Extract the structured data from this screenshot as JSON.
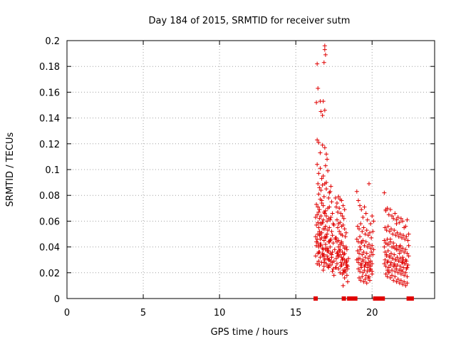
{
  "chart_data": {
    "type": "scatter",
    "title": "Day 184 of 2015, SRMTID for receiver sutm",
    "xlabel": "GPS time / hours",
    "ylabel": "SRMTID / TECUs",
    "xlim": [
      0,
      24.1
    ],
    "ylim": [
      0,
      0.2
    ],
    "xticks": [
      0,
      5,
      10,
      15,
      20
    ],
    "xtick_labels": [
      "0",
      "5",
      "10",
      "15",
      "20"
    ],
    "yticks": [
      0,
      0.02,
      0.04,
      0.06,
      0.08,
      0.1,
      0.12,
      0.14,
      0.16,
      0.18,
      0.2
    ],
    "ytick_labels": [
      "0",
      "0.02",
      "0.04",
      "0.06",
      "0.08",
      "0.1",
      "0.12",
      "0.14",
      "0.16",
      "0.18",
      "0.2"
    ],
    "grid": true,
    "marker": "plus",
    "color": "#e00000",
    "series": [
      {
        "name": "SRMTID",
        "x": [
          16.9,
          16.9,
          16.95,
          16.85,
          16.4,
          16.45,
          16.35,
          16.6,
          16.9,
          16.65,
          16.75,
          16.8,
          16.4,
          16.5,
          16.6,
          16.75,
          16.9,
          17.0,
          17.05,
          16.95,
          16.8,
          16.4,
          16.5,
          16.6,
          16.7,
          17.1,
          17.3,
          17.2,
          16.9,
          17.0,
          16.45,
          16.55,
          16.65,
          16.75,
          16.85,
          17.15,
          17.25,
          16.5,
          16.7,
          17.0,
          16.35,
          16.45,
          16.55,
          16.7,
          16.8,
          16.95,
          17.1,
          17.35,
          17.4,
          16.6,
          16.85,
          17.2,
          16.3,
          16.4,
          16.55,
          16.65,
          16.8,
          16.9,
          17.05,
          17.15,
          17.3,
          17.45,
          16.5,
          16.75,
          17.0,
          17.25,
          16.35,
          16.5,
          16.6,
          16.8,
          16.95,
          17.1,
          17.2,
          17.35,
          17.5,
          16.45,
          16.7,
          16.9,
          17.05,
          17.4,
          16.3,
          16.4,
          16.55,
          16.7,
          16.85,
          17.0,
          17.15,
          17.3,
          17.45,
          17.6,
          16.6,
          16.95,
          17.25,
          16.35,
          16.5,
          16.65,
          16.8,
          16.95,
          17.1,
          17.25,
          17.4,
          17.55,
          16.45,
          16.75,
          17.05,
          17.35,
          16.3,
          16.45,
          16.6,
          16.75,
          16.9,
          17.05,
          17.2,
          17.35,
          17.5,
          17.65,
          16.55,
          16.85,
          17.15,
          16.4,
          16.55,
          16.7,
          16.85,
          17.0,
          17.15,
          17.3,
          17.45,
          16.5,
          16.8,
          17.1,
          17.4,
          16.35,
          16.5,
          16.65,
          16.8,
          16.95,
          17.1,
          17.25,
          17.4,
          16.6,
          16.9,
          17.2,
          16.45,
          16.6,
          16.75,
          16.9,
          17.05,
          17.2,
          17.35,
          16.55,
          16.85,
          17.3,
          16.7,
          16.95,
          17.15,
          17.5,
          17.6,
          17.6,
          17.7,
          17.8,
          17.9,
          18.0,
          18.1,
          18.2,
          17.65,
          17.75,
          17.85,
          17.95,
          18.05,
          18.15,
          17.7,
          17.8,
          17.9,
          18.0,
          18.1,
          18.2,
          18.3,
          17.75,
          17.85,
          17.95,
          18.05,
          18.25,
          17.6,
          17.7,
          17.8,
          17.9,
          18.0,
          18.1,
          18.2,
          18.3,
          18.35,
          17.65,
          17.85,
          18.05,
          17.7,
          17.8,
          17.9,
          18.0,
          18.1,
          18.2,
          18.3,
          17.75,
          17.95,
          18.15,
          18.35,
          18.4,
          17.65,
          17.8,
          17.95,
          18.1,
          18.25,
          18.4,
          17.7,
          17.9,
          18.05,
          18.2,
          18.35,
          17.75,
          17.9,
          18.05,
          18.2,
          18.3,
          18.45,
          17.8,
          18.0,
          18.15,
          18.35,
          18.1,
          18.2,
          18.3,
          18.4,
          18.15,
          18.0,
          19.0,
          19.1,
          19.2,
          19.3,
          19.4,
          19.5,
          19.6,
          19.7,
          19.8,
          19.9,
          20.0,
          20.1,
          19.05,
          19.15,
          19.25,
          19.35,
          19.45,
          19.55,
          19.65,
          19.75,
          19.85,
          19.95,
          20.05,
          19.0,
          19.1,
          19.2,
          19.3,
          19.4,
          19.5,
          19.6,
          19.7,
          19.8,
          19.9,
          20.0,
          20.1,
          19.05,
          19.15,
          19.25,
          19.35,
          19.45,
          19.55,
          19.65,
          19.75,
          19.85,
          19.95,
          20.05,
          19.0,
          19.1,
          19.2,
          19.3,
          19.4,
          19.5,
          19.6,
          19.7,
          19.8,
          19.9,
          20.0,
          19.1,
          19.2,
          19.3,
          19.4,
          19.5,
          19.6,
          19.7,
          19.8,
          19.9,
          20.0,
          19.15,
          19.25,
          19.35,
          19.45,
          19.55,
          19.65,
          19.75,
          19.85,
          19.1,
          19.25,
          19.4,
          19.55,
          19.7,
          19.85,
          20.0,
          19.9,
          19.8,
          19.2,
          19.3,
          20.8,
          20.9,
          21.0,
          21.1,
          21.2,
          21.3,
          21.4,
          21.5,
          21.6,
          21.7,
          21.8,
          21.9,
          22.0,
          22.1,
          22.2,
          22.3,
          22.4,
          20.85,
          20.95,
          21.05,
          21.15,
          21.25,
          21.35,
          21.45,
          21.55,
          21.65,
          21.75,
          21.85,
          21.95,
          22.05,
          22.15,
          22.25,
          22.35,
          20.8,
          20.9,
          21.0,
          21.1,
          21.2,
          21.3,
          21.4,
          21.5,
          21.6,
          21.7,
          21.8,
          21.9,
          22.0,
          22.1,
          22.2,
          22.3,
          22.4,
          20.85,
          20.95,
          21.05,
          21.15,
          21.25,
          21.35,
          21.45,
          21.55,
          21.65,
          21.75,
          21.85,
          21.95,
          22.05,
          22.15,
          22.25,
          22.35,
          20.8,
          20.9,
          21.0,
          21.1,
          21.2,
          21.3,
          21.4,
          21.5,
          21.6,
          21.7,
          21.8,
          21.9,
          22.0,
          22.1,
          22.2,
          22.3,
          20.9,
          21.0,
          21.1,
          21.2,
          21.3,
          21.4,
          21.5,
          21.6,
          21.7,
          21.8,
          21.9,
          22.0,
          22.1,
          22.2,
          22.3,
          20.85,
          20.95,
          21.05,
          21.15,
          21.25,
          21.35,
          21.45,
          21.55,
          21.65,
          21.75,
          21.85,
          21.95,
          22.05,
          22.15,
          22.25,
          21.0,
          21.2,
          21.4,
          21.6,
          21.8,
          22.0,
          22.2,
          22.4,
          21.1,
          21.5,
          21.9,
          22.3,
          20.8,
          21.6,
          22.0,
          21.85,
          20.85,
          21.0,
          20.9
        ],
        "y": [
          0.196,
          0.193,
          0.189,
          0.183,
          0.182,
          0.163,
          0.152,
          0.153,
          0.146,
          0.145,
          0.142,
          0.153,
          0.123,
          0.121,
          0.113,
          0.119,
          0.117,
          0.112,
          0.108,
          0.103,
          0.095,
          0.104,
          0.097,
          0.101,
          0.093,
          0.099,
          0.087,
          0.082,
          0.089,
          0.09,
          0.089,
          0.086,
          0.084,
          0.088,
          0.079,
          0.078,
          0.083,
          0.081,
          0.076,
          0.085,
          0.073,
          0.071,
          0.069,
          0.074,
          0.072,
          0.068,
          0.07,
          0.075,
          0.066,
          0.077,
          0.067,
          0.071,
          0.063,
          0.065,
          0.062,
          0.064,
          0.061,
          0.066,
          0.06,
          0.062,
          0.063,
          0.058,
          0.067,
          0.059,
          0.064,
          0.061,
          0.057,
          0.055,
          0.058,
          0.054,
          0.056,
          0.053,
          0.055,
          0.052,
          0.057,
          0.059,
          0.051,
          0.054,
          0.05,
          0.049,
          0.048,
          0.046,
          0.049,
          0.047,
          0.045,
          0.048,
          0.044,
          0.046,
          0.043,
          0.047,
          0.05,
          0.042,
          0.045,
          0.041,
          0.04,
          0.042,
          0.038,
          0.039,
          0.037,
          0.04,
          0.036,
          0.038,
          0.043,
          0.035,
          0.039,
          0.034,
          0.033,
          0.035,
          0.032,
          0.034,
          0.031,
          0.033,
          0.03,
          0.032,
          0.029,
          0.031,
          0.036,
          0.028,
          0.03,
          0.027,
          0.026,
          0.028,
          0.025,
          0.027,
          0.024,
          0.026,
          0.023,
          0.029,
          0.022,
          0.025,
          0.021,
          0.044,
          0.036,
          0.041,
          0.033,
          0.038,
          0.031,
          0.035,
          0.028,
          0.042,
          0.03,
          0.026,
          0.05,
          0.046,
          0.039,
          0.048,
          0.037,
          0.044,
          0.032,
          0.052,
          0.034,
          0.029,
          0.058,
          0.047,
          0.037,
          0.018,
          0.024,
          0.078,
          0.074,
          0.079,
          0.077,
          0.076,
          0.072,
          0.069,
          0.071,
          0.067,
          0.07,
          0.066,
          0.064,
          0.062,
          0.061,
          0.058,
          0.059,
          0.056,
          0.057,
          0.054,
          0.051,
          0.055,
          0.052,
          0.05,
          0.049,
          0.048,
          0.046,
          0.044,
          0.045,
          0.042,
          0.043,
          0.041,
          0.039,
          0.04,
          0.038,
          0.047,
          0.037,
          0.036,
          0.035,
          0.033,
          0.034,
          0.032,
          0.031,
          0.03,
          0.029,
          0.036,
          0.028,
          0.027,
          0.026,
          0.025,
          0.024,
          0.023,
          0.025,
          0.022,
          0.021,
          0.023,
          0.027,
          0.02,
          0.019,
          0.022,
          0.018,
          0.033,
          0.038,
          0.03,
          0.035,
          0.028,
          0.031,
          0.04,
          0.026,
          0.034,
          0.029,
          0.01,
          0.016,
          0.024,
          0.013,
          0.02,
          0.044,
          0.083,
          0.076,
          0.072,
          0.069,
          0.063,
          0.071,
          0.066,
          0.061,
          0.089,
          0.058,
          0.064,
          0.06,
          0.056,
          0.054,
          0.058,
          0.052,
          0.055,
          0.05,
          0.053,
          0.049,
          0.051,
          0.047,
          0.052,
          0.046,
          0.044,
          0.048,
          0.043,
          0.045,
          0.041,
          0.044,
          0.04,
          0.042,
          0.039,
          0.041,
          0.038,
          0.037,
          0.035,
          0.038,
          0.034,
          0.036,
          0.032,
          0.035,
          0.031,
          0.033,
          0.036,
          0.034,
          0.03,
          0.028,
          0.031,
          0.027,
          0.029,
          0.025,
          0.028,
          0.024,
          0.026,
          0.029,
          0.027,
          0.023,
          0.021,
          0.024,
          0.02,
          0.022,
          0.018,
          0.021,
          0.017,
          0.023,
          0.019,
          0.016,
          0.014,
          0.017,
          0.013,
          0.015,
          0.012,
          0.016,
          0.014,
          0.031,
          0.026,
          0.03,
          0.026,
          0.027,
          0.022,
          0.021,
          0.025,
          0.028,
          0.04,
          0.044,
          0.082,
          0.068,
          0.07,
          0.065,
          0.069,
          0.064,
          0.062,
          0.066,
          0.061,
          0.063,
          0.059,
          0.062,
          0.06,
          0.055,
          0.056,
          0.061,
          0.05,
          0.055,
          0.053,
          0.056,
          0.052,
          0.054,
          0.05,
          0.053,
          0.049,
          0.051,
          0.048,
          0.05,
          0.047,
          0.049,
          0.046,
          0.048,
          0.045,
          0.045,
          0.043,
          0.046,
          0.042,
          0.044,
          0.04,
          0.043,
          0.039,
          0.041,
          0.038,
          0.04,
          0.037,
          0.039,
          0.036,
          0.038,
          0.035,
          0.041,
          0.036,
          0.034,
          0.037,
          0.033,
          0.035,
          0.031,
          0.034,
          0.03,
          0.032,
          0.029,
          0.031,
          0.028,
          0.03,
          0.027,
          0.029,
          0.026,
          0.027,
          0.025,
          0.028,
          0.024,
          0.026,
          0.022,
          0.025,
          0.021,
          0.023,
          0.02,
          0.022,
          0.019,
          0.021,
          0.018,
          0.02,
          0.017,
          0.019,
          0.017,
          0.02,
          0.016,
          0.018,
          0.014,
          0.017,
          0.013,
          0.015,
          0.012,
          0.014,
          0.011,
          0.013,
          0.01,
          0.012,
          0.03,
          0.033,
          0.029,
          0.032,
          0.028,
          0.031,
          0.027,
          0.03,
          0.026,
          0.029,
          0.025,
          0.028,
          0.024,
          0.027,
          0.023,
          0.042,
          0.046,
          0.04,
          0.038,
          0.035,
          0.032,
          0.03,
          0.033,
          0.021,
          0.025,
          0.022,
          0.024,
          0.04,
          0.058,
          0.028,
          0.041,
          0.055,
          0.022,
          0.069
        ]
      },
      {
        "name": "zero-level marks",
        "x": [
          16.3,
          18.15,
          18.5,
          18.7,
          18.9,
          20.2,
          20.4,
          20.55,
          20.7,
          22.4,
          22.6
        ],
        "y": [
          0,
          0,
          0,
          0,
          0,
          0,
          0,
          0,
          0,
          0,
          0
        ]
      }
    ]
  }
}
